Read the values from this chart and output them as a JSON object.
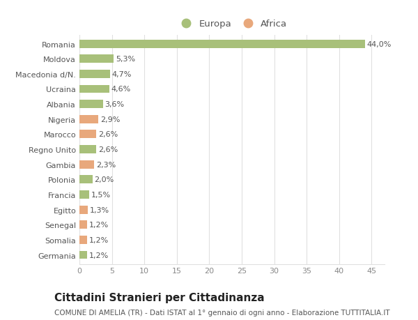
{
  "countries": [
    "Romania",
    "Moldova",
    "Macedonia d/N.",
    "Ucraina",
    "Albania",
    "Nigeria",
    "Marocco",
    "Regno Unito",
    "Gambia",
    "Polonia",
    "Francia",
    "Egitto",
    "Senegal",
    "Somalia",
    "Germania"
  ],
  "values": [
    44.0,
    5.3,
    4.7,
    4.6,
    3.6,
    2.9,
    2.6,
    2.6,
    2.3,
    2.0,
    1.5,
    1.3,
    1.2,
    1.2,
    1.2
  ],
  "labels": [
    "44,0%",
    "5,3%",
    "4,7%",
    "4,6%",
    "3,6%",
    "2,9%",
    "2,6%",
    "2,6%",
    "2,3%",
    "2,0%",
    "1,5%",
    "1,3%",
    "1,2%",
    "1,2%",
    "1,2%"
  ],
  "continents": [
    "Europa",
    "Europa",
    "Europa",
    "Europa",
    "Europa",
    "Africa",
    "Africa",
    "Europa",
    "Africa",
    "Europa",
    "Europa",
    "Africa",
    "Africa",
    "Africa",
    "Europa"
  ],
  "color_europa": "#a8c07a",
  "color_africa": "#e8a87c",
  "bg_color": "#ffffff",
  "grid_color": "#e0e0e0",
  "title": "Cittadini Stranieri per Cittadinanza",
  "subtitle": "COMUNE DI AMELIA (TR) - Dati ISTAT al 1° gennaio di ogni anno - Elaborazione TUTTITALIA.IT",
  "xlim": [
    0,
    47
  ],
  "xticks": [
    0,
    5,
    10,
    15,
    20,
    25,
    30,
    35,
    40,
    45
  ],
  "bar_height": 0.55,
  "label_fontsize": 8,
  "tick_fontsize": 8,
  "title_fontsize": 11,
  "subtitle_fontsize": 7.5
}
